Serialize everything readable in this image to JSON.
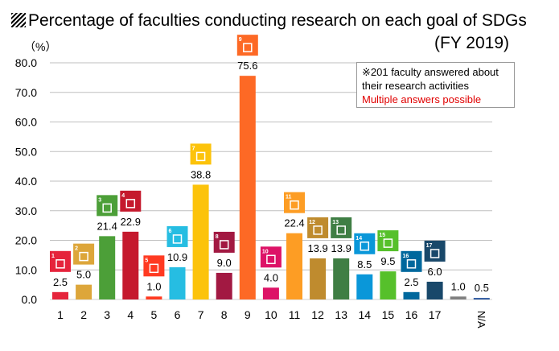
{
  "chart_data": {
    "type": "bar",
    "title": "Percentage of faculties conducting research on each goal of SDGs",
    "subtitle": "(FY 2019)",
    "ylabel": "(%)",
    "ylim": [
      0,
      80
    ],
    "yticks": [
      "0.0",
      "10.0",
      "20.0",
      "30.0",
      "40.0",
      "50.0",
      "60.0",
      "70.0",
      "80.0"
    ],
    "grid": true,
    "categories": [
      "1",
      "2",
      "3",
      "4",
      "5",
      "6",
      "7",
      "8",
      "9",
      "10",
      "11",
      "12",
      "13",
      "14",
      "15",
      "16",
      "17",
      "",
      "N/A"
    ],
    "values": [
      2.5,
      5.0,
      21.4,
      22.9,
      1.0,
      10.9,
      38.8,
      9.0,
      75.6,
      4.0,
      22.4,
      13.9,
      13.9,
      8.5,
      9.5,
      2.5,
      6.0,
      1.0,
      0.5
    ],
    "labels": [
      "2.5",
      "5.0",
      "21.4",
      "22.9",
      "1.0",
      "10.9",
      "38.8",
      "9.0",
      "75.6",
      "4.0",
      "22.4",
      "13.9",
      "13.9",
      "8.5",
      "9.5",
      "2.5",
      "6.0",
      "1.0",
      "0.5"
    ],
    "colors": [
      "#e5243b",
      "#dda63a",
      "#4c9f38",
      "#c5192d",
      "#ff3a21",
      "#26bde2",
      "#fcc30b",
      "#a21942",
      "#fd6925",
      "#dd1367",
      "#fd9d24",
      "#bf8b2e",
      "#3f7e44",
      "#0a97d9",
      "#56c02b",
      "#00689d",
      "#19486a",
      "#808080",
      "#1f4e99"
    ],
    "icons": [
      true,
      true,
      true,
      true,
      true,
      true,
      true,
      true,
      true,
      true,
      true,
      true,
      true,
      true,
      true,
      true,
      true,
      false,
      false
    ]
  },
  "note": {
    "line1": "※201 faculty answered about",
    "line2": "their research activities",
    "line3": "Multiple answers possible"
  }
}
